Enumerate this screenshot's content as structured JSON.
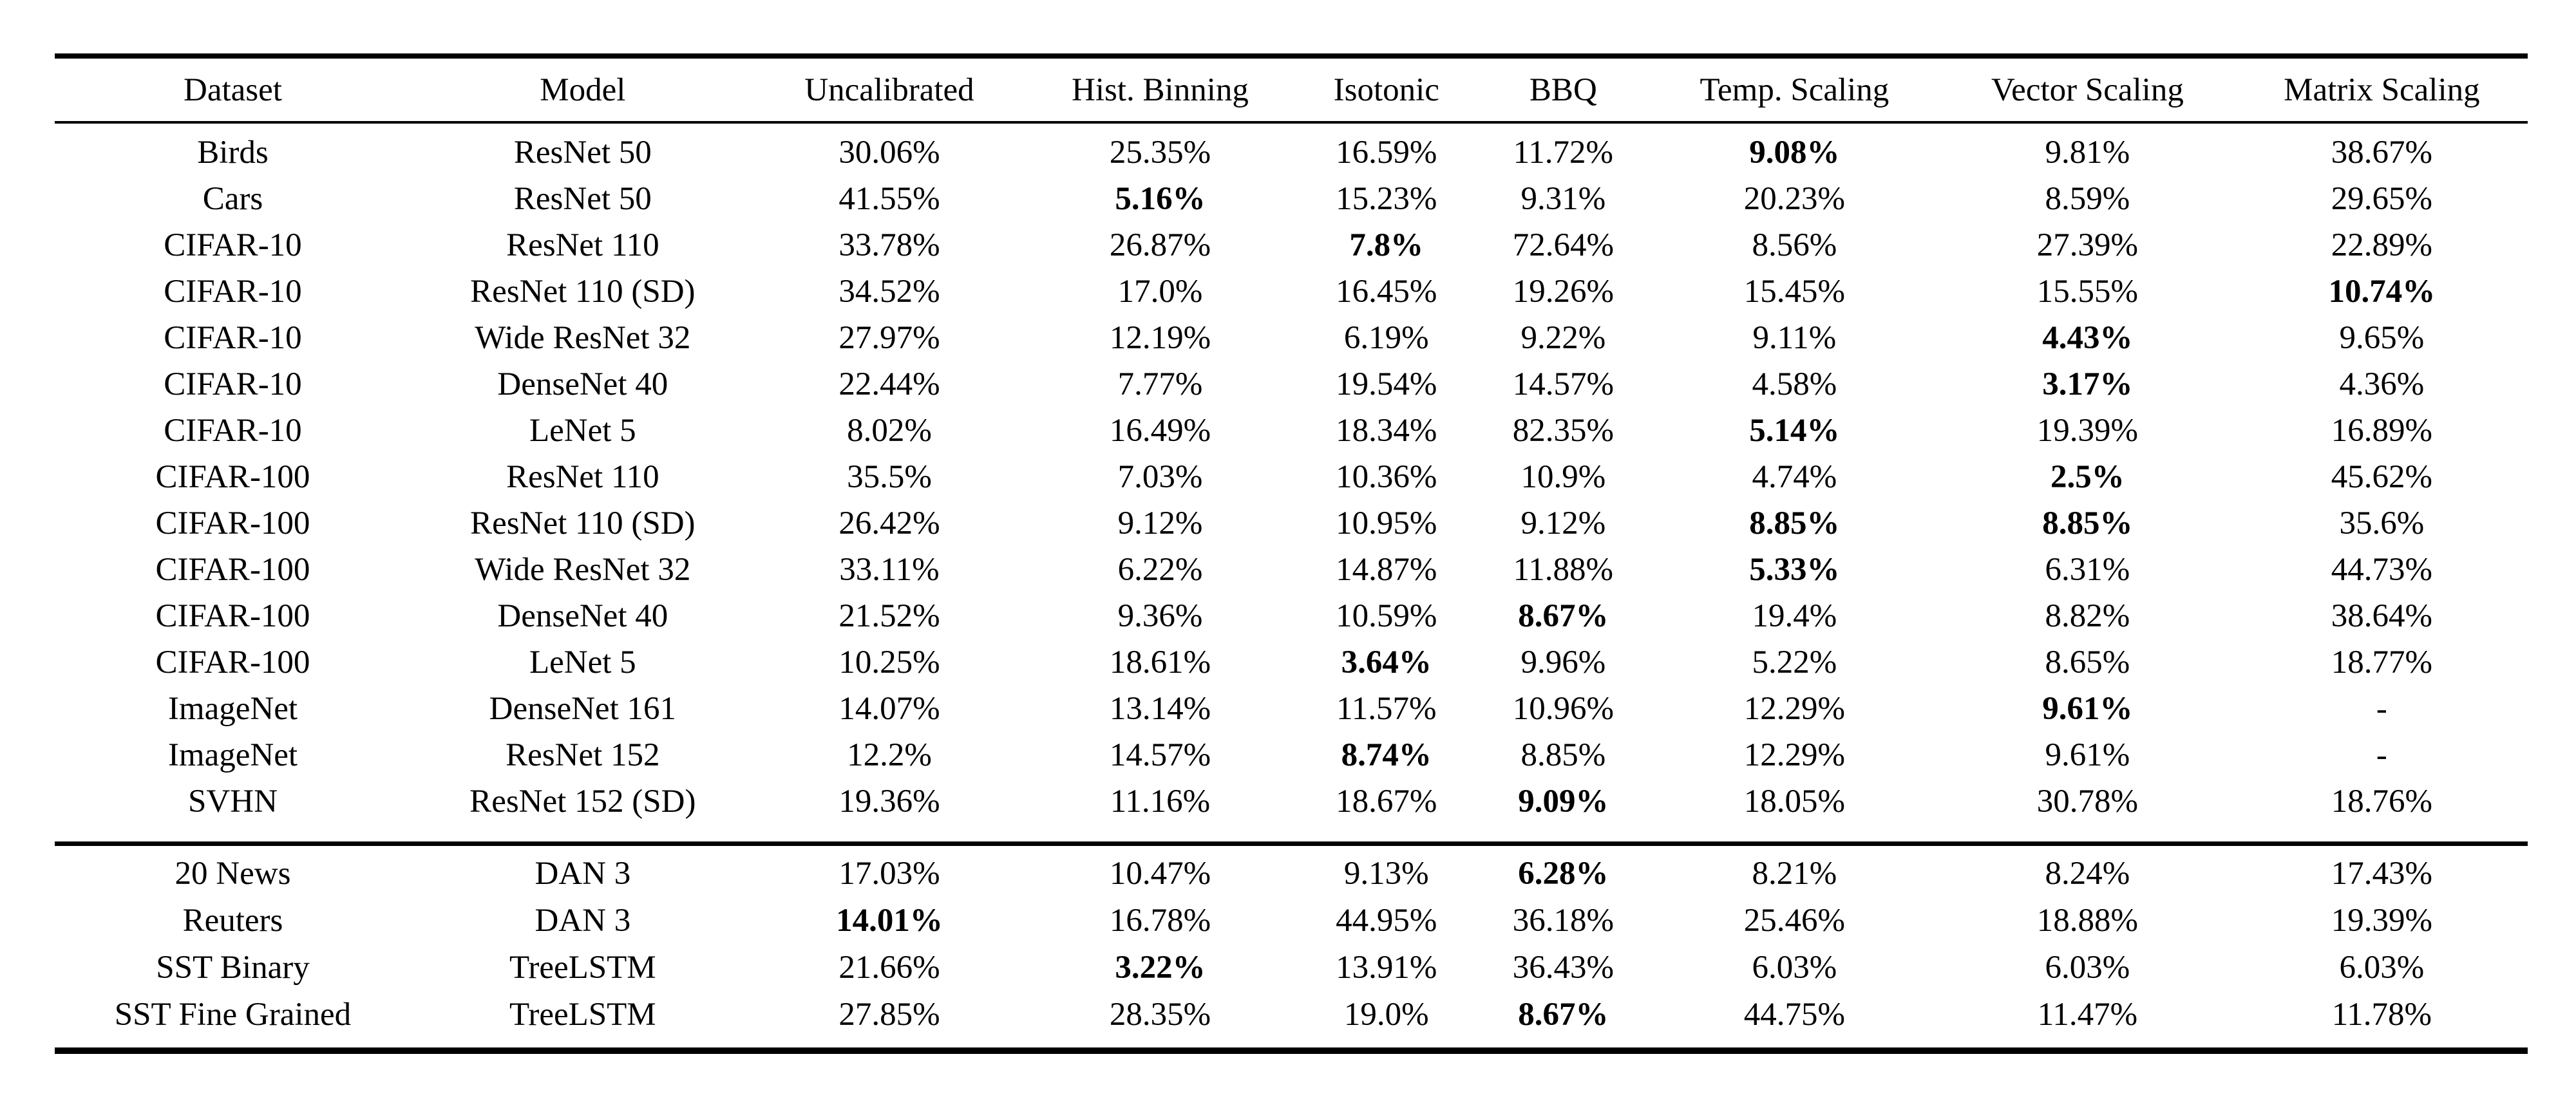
{
  "table": {
    "columns": [
      "Dataset",
      "Model",
      "Uncalibrated",
      "Hist. Binning",
      "Isotonic",
      "BBQ",
      "Temp. Scaling",
      "Vector Scaling",
      "Matrix Scaling"
    ],
    "sections": [
      {
        "rows": [
          {
            "cells": [
              "Birds",
              "ResNet 50",
              "30.06%",
              "25.35%",
              "16.59%",
              "11.72%",
              "9.08%",
              "9.81%",
              "38.67%"
            ],
            "bold": [
              6
            ]
          },
          {
            "cells": [
              "Cars",
              "ResNet 50",
              "41.55%",
              "5.16%",
              "15.23%",
              "9.31%",
              "20.23%",
              "8.59%",
              "29.65%"
            ],
            "bold": [
              3
            ]
          },
          {
            "cells": [
              "CIFAR-10",
              "ResNet 110",
              "33.78%",
              "26.87%",
              "7.8%",
              "72.64%",
              "8.56%",
              "27.39%",
              "22.89%"
            ],
            "bold": [
              4
            ]
          },
          {
            "cells": [
              "CIFAR-10",
              "ResNet 110 (SD)",
              "34.52%",
              "17.0%",
              "16.45%",
              "19.26%",
              "15.45%",
              "15.55%",
              "10.74%"
            ],
            "bold": [
              8
            ]
          },
          {
            "cells": [
              "CIFAR-10",
              "Wide ResNet 32",
              "27.97%",
              "12.19%",
              "6.19%",
              "9.22%",
              "9.11%",
              "4.43%",
              "9.65%"
            ],
            "bold": [
              7
            ]
          },
          {
            "cells": [
              "CIFAR-10",
              "DenseNet 40",
              "22.44%",
              "7.77%",
              "19.54%",
              "14.57%",
              "4.58%",
              "3.17%",
              "4.36%"
            ],
            "bold": [
              7
            ]
          },
          {
            "cells": [
              "CIFAR-10",
              "LeNet 5",
              "8.02%",
              "16.49%",
              "18.34%",
              "82.35%",
              "5.14%",
              "19.39%",
              "16.89%"
            ],
            "bold": [
              6
            ]
          },
          {
            "cells": [
              "CIFAR-100",
              "ResNet 110",
              "35.5%",
              "7.03%",
              "10.36%",
              "10.9%",
              "4.74%",
              "2.5%",
              "45.62%"
            ],
            "bold": [
              7
            ]
          },
          {
            "cells": [
              "CIFAR-100",
              "ResNet 110 (SD)",
              "26.42%",
              "9.12%",
              "10.95%",
              "9.12%",
              "8.85%",
              "8.85%",
              "35.6%"
            ],
            "bold": [
              6,
              7
            ]
          },
          {
            "cells": [
              "CIFAR-100",
              "Wide ResNet 32",
              "33.11%",
              "6.22%",
              "14.87%",
              "11.88%",
              "5.33%",
              "6.31%",
              "44.73%"
            ],
            "bold": [
              6
            ]
          },
          {
            "cells": [
              "CIFAR-100",
              "DenseNet 40",
              "21.52%",
              "9.36%",
              "10.59%",
              "8.67%",
              "19.4%",
              "8.82%",
              "38.64%"
            ],
            "bold": [
              5
            ]
          },
          {
            "cells": [
              "CIFAR-100",
              "LeNet 5",
              "10.25%",
              "18.61%",
              "3.64%",
              "9.96%",
              "5.22%",
              "8.65%",
              "18.77%"
            ],
            "bold": [
              4
            ]
          },
          {
            "cells": [
              "ImageNet",
              "DenseNet 161",
              "14.07%",
              "13.14%",
              "11.57%",
              "10.96%",
              "12.29%",
              "9.61%",
              "-"
            ],
            "bold": [
              7
            ]
          },
          {
            "cells": [
              "ImageNet",
              "ResNet 152",
              "12.2%",
              "14.57%",
              "8.74%",
              "8.85%",
              "12.29%",
              "9.61%",
              "-"
            ],
            "bold": [
              4
            ]
          },
          {
            "cells": [
              "SVHN",
              "ResNet 152 (SD)",
              "19.36%",
              "11.16%",
              "18.67%",
              "9.09%",
              "18.05%",
              "30.78%",
              "18.76%"
            ],
            "bold": [
              5
            ]
          }
        ]
      },
      {
        "rows": [
          {
            "cells": [
              "20 News",
              "DAN 3",
              "17.03%",
              "10.47%",
              "9.13%",
              "6.28%",
              "8.21%",
              "8.24%",
              "17.43%"
            ],
            "bold": [
              5
            ]
          },
          {
            "cells": [
              "Reuters",
              "DAN 3",
              "14.01%",
              "16.78%",
              "44.95%",
              "36.18%",
              "25.46%",
              "18.88%",
              "19.39%"
            ],
            "bold": [
              2
            ]
          },
          {
            "cells": [
              "SST Binary",
              "TreeLSTM",
              "21.66%",
              "3.22%",
              "13.91%",
              "36.43%",
              "6.03%",
              "6.03%",
              "6.03%"
            ],
            "bold": [
              3
            ]
          },
          {
            "cells": [
              "SST Fine Grained",
              "TreeLSTM",
              "27.85%",
              "28.35%",
              "19.0%",
              "8.67%",
              "44.75%",
              "11.47%",
              "11.78%"
            ],
            "bold": [
              5
            ]
          }
        ]
      }
    ]
  }
}
